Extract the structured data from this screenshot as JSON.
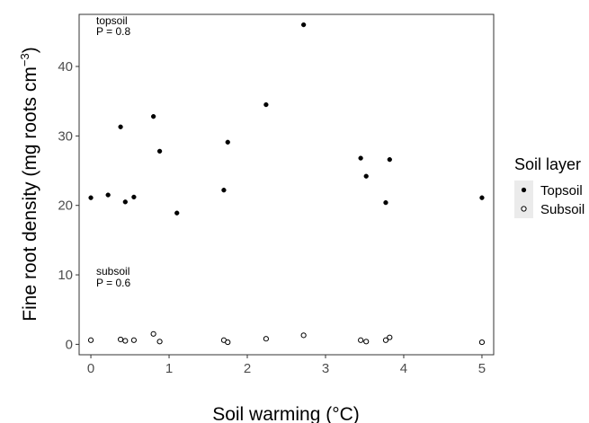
{
  "chart_data": {
    "type": "scatter",
    "xlabel": "Soil warming (°C)",
    "ylabel_main": "Fine root density (mg roots cm",
    "ylabel_sup": "−3",
    "ylabel_end": ")",
    "xlim": [
      -0.15,
      5.15
    ],
    "ylim": [
      -1.5,
      47.5
    ],
    "x_ticks": [
      0,
      1,
      2,
      3,
      4,
      5
    ],
    "y_ticks": [
      0,
      10,
      20,
      30,
      40
    ],
    "grid": false,
    "legend": {
      "title": "Soil layer",
      "position": "right"
    },
    "annotations": [
      {
        "line1": "topsoil",
        "line2": "P =  0.8"
      },
      {
        "line1": "subsoil",
        "line2": "P =  0.6"
      }
    ],
    "series": [
      {
        "name": "Topsoil",
        "marker": "filled",
        "points": [
          [
            0.0,
            21.1
          ],
          [
            0.22,
            21.5
          ],
          [
            0.38,
            31.3
          ],
          [
            0.44,
            20.5
          ],
          [
            0.55,
            21.2
          ],
          [
            0.8,
            32.8
          ],
          [
            0.88,
            27.8
          ],
          [
            1.1,
            18.9
          ],
          [
            1.7,
            22.2
          ],
          [
            1.75,
            29.1
          ],
          [
            2.24,
            34.5
          ],
          [
            2.72,
            46.0
          ],
          [
            3.45,
            26.8
          ],
          [
            3.52,
            24.2
          ],
          [
            3.77,
            20.4
          ],
          [
            3.82,
            26.6
          ],
          [
            5.0,
            21.1
          ]
        ]
      },
      {
        "name": "Subsoil",
        "marker": "open",
        "points": [
          [
            0.0,
            0.6
          ],
          [
            0.38,
            0.7
          ],
          [
            0.44,
            0.5
          ],
          [
            0.55,
            0.6
          ],
          [
            0.8,
            1.5
          ],
          [
            0.88,
            0.4
          ],
          [
            1.7,
            0.6
          ],
          [
            1.75,
            0.3
          ],
          [
            2.24,
            0.8
          ],
          [
            2.72,
            1.3
          ],
          [
            3.45,
            0.6
          ],
          [
            3.52,
            0.4
          ],
          [
            3.77,
            0.6
          ],
          [
            3.82,
            1.0
          ],
          [
            5.0,
            0.3
          ]
        ]
      }
    ]
  }
}
